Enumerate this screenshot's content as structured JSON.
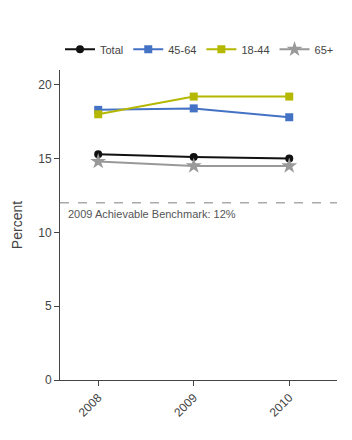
{
  "chart_data": {
    "type": "line",
    "x": [
      2008,
      2009,
      2010
    ],
    "series": [
      {
        "name": "Total",
        "color": "#111111",
        "marker": "circle",
        "values": [
          15.3,
          15.1,
          15.0
        ]
      },
      {
        "name": "45-64",
        "color": "#4472c4",
        "marker": "square",
        "values": [
          18.3,
          18.4,
          17.8
        ]
      },
      {
        "name": "18-44",
        "color": "#b5b800",
        "marker": "square",
        "values": [
          18.0,
          19.2,
          19.2
        ]
      },
      {
        "name": "65+",
        "color": "#999999",
        "marker": "star",
        "values": [
          14.8,
          14.5,
          14.5
        ]
      }
    ],
    "reference_lines": [
      {
        "value": 12,
        "label": "2009 Achievable Benchmark: 12%",
        "color": "#aaaaaa",
        "line_style": "dashed"
      }
    ],
    "ylabel": "Percent",
    "xlim": [
      2007.6,
      2010.5
    ],
    "xticks": [
      2008,
      2009,
      2010
    ],
    "ylim": [
      0,
      21
    ],
    "yticks": [
      0,
      5,
      10,
      15,
      20
    ],
    "grid": false,
    "legend": "top"
  }
}
